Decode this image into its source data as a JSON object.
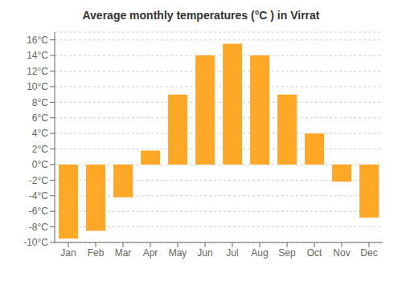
{
  "chart_data": {
    "type": "bar",
    "title": "Average monthly temperatures (°C ) in Virrat",
    "categories": [
      "Jan",
      "Feb",
      "Mar",
      "Apr",
      "May",
      "Jun",
      "Jul",
      "Aug",
      "Sep",
      "Oct",
      "Nov",
      "Dec"
    ],
    "values": [
      -9.5,
      -8.5,
      -4.2,
      1.8,
      9.0,
      14.0,
      15.5,
      14.0,
      9.0,
      4.0,
      -2.2,
      -6.8
    ],
    "color": "#FFA726",
    "ylim": [
      -10,
      17
    ],
    "yticks": [
      {
        "value": -10,
        "label": "-10°C"
      },
      {
        "value": -8,
        "label": "-8°C"
      },
      {
        "value": -6,
        "label": "-6°C"
      },
      {
        "value": -4,
        "label": "-4°C"
      },
      {
        "value": -2,
        "label": "-2°C"
      },
      {
        "value": 0,
        "label": "0°C"
      },
      {
        "value": 2,
        "label": "2°C"
      },
      {
        "value": 4,
        "label": "4°C"
      },
      {
        "value": 6,
        "label": "6°C"
      },
      {
        "value": 8,
        "label": "8°C"
      },
      {
        "value": 10,
        "label": "10°C"
      },
      {
        "value": 12,
        "label": "12°C"
      },
      {
        "value": 14,
        "label": "14°C"
      },
      {
        "value": 16,
        "label": "16°C"
      }
    ],
    "grid": true
  }
}
